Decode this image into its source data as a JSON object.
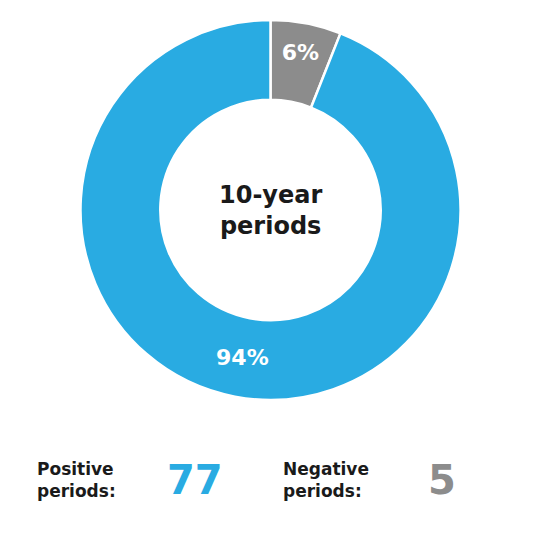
{
  "chart_data": {
    "type": "pie",
    "values": [
      6,
      94
    ],
    "value_labels": [
      "6%",
      "94%"
    ],
    "colors": [
      "#8C8C8C",
      "#29ABE2"
    ],
    "data_labels": true,
    "annotations": [
      {
        "lines": [
          "10-year",
          "periods"
        ]
      },
      {
        "lines": [
          "Positive",
          "periods:"
        ],
        "value": 77,
        "color": "#29ABE2"
      },
      {
        "lines": [
          "Negative",
          "periods:"
        ],
        "value": 5,
        "color": "#8C8C8C"
      }
    ]
  }
}
